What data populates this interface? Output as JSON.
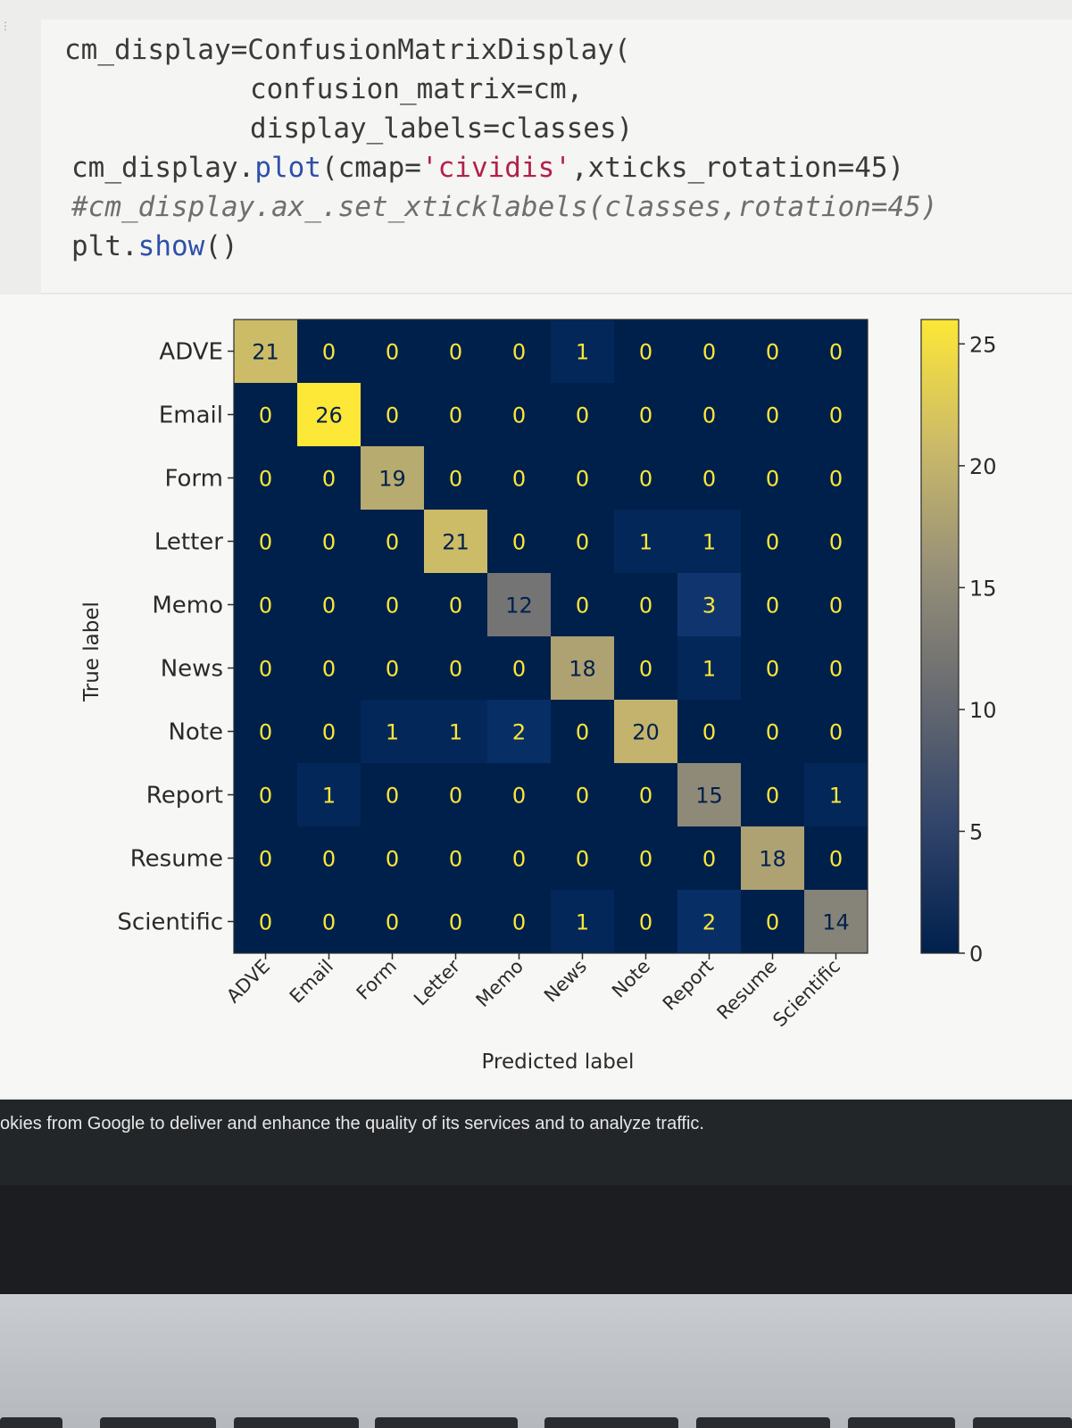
{
  "code": {
    "line1": {
      "a": "cm_display=ConfusionMatrixDisplay("
    },
    "line2": {
      "a": "confusion_matrix=cm,"
    },
    "line3": {
      "a": "display_labels=classes)"
    },
    "line4": {
      "a": "cm_display.",
      "b": "plot",
      "c": "(cmap=",
      "d": "'cividis'",
      "e": ",xticks_rotation=45)"
    },
    "line5": {
      "a": "#cm_display.ax_.set_xticklabels(classes,rotation=45)"
    },
    "line6": {
      "a": "plt.",
      "b": "show",
      "c": "()"
    }
  },
  "chart_data": {
    "type": "heatmap",
    "colormap": "cividis",
    "xlabel": "Predicted label",
    "ylabel": "True label",
    "x_categories": [
      "ADVE",
      "Email",
      "Form",
      "Letter",
      "Memo",
      "News",
      "Note",
      "Report",
      "Resume",
      "Scientific"
    ],
    "y_categories": [
      "ADVE",
      "Email",
      "Form",
      "Letter",
      "Memo",
      "News",
      "Note",
      "Report",
      "Resume",
      "Scientific"
    ],
    "values": [
      [
        21,
        0,
        0,
        0,
        0,
        1,
        0,
        0,
        0,
        0
      ],
      [
        0,
        26,
        0,
        0,
        0,
        0,
        0,
        0,
        0,
        0
      ],
      [
        0,
        0,
        19,
        0,
        0,
        0,
        0,
        0,
        0,
        0
      ],
      [
        0,
        0,
        0,
        21,
        0,
        0,
        1,
        1,
        0,
        0
      ],
      [
        0,
        0,
        0,
        0,
        12,
        0,
        0,
        3,
        0,
        0
      ],
      [
        0,
        0,
        0,
        0,
        0,
        18,
        0,
        1,
        0,
        0
      ],
      [
        0,
        0,
        1,
        1,
        2,
        0,
        20,
        0,
        0,
        0
      ],
      [
        0,
        1,
        0,
        0,
        0,
        0,
        0,
        15,
        0,
        1
      ],
      [
        0,
        0,
        0,
        0,
        0,
        0,
        0,
        0,
        18,
        0
      ],
      [
        0,
        0,
        0,
        0,
        0,
        1,
        0,
        2,
        0,
        14
      ]
    ],
    "colorbar": {
      "range": [
        0,
        26
      ],
      "ticks": [
        0,
        5,
        10,
        15,
        20,
        25
      ]
    },
    "text_colors": {
      "on_dark": "#fde737",
      "on_light": "#00204c"
    }
  },
  "cookie_notice": "okies from Google to deliver and enhance the quality of its services and to analyze traffic."
}
